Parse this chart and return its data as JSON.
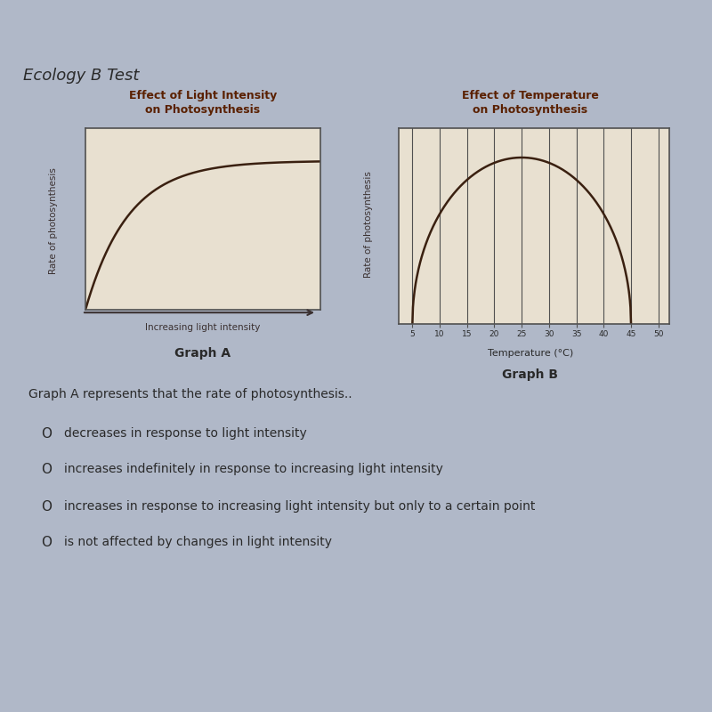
{
  "page_bg": "#b0b8c8",
  "paper_bg": "#d8d0c0",
  "header_bg": "#7a5030",
  "header_text": "Ecology B Test",
  "header_text_color": "#c8a878",
  "graph_a_title": "Effect of Light Intensity\non Photosynthesis",
  "graph_a_ylabel": "Rate of photosynthesis",
  "graph_a_xlabel": "Increasing light intensity",
  "graph_a_label": "Graph A",
  "graph_b_title": "Effect of Temperature\non Photosynthesis",
  "graph_b_ylabel": "Rate of photosynthesis",
  "graph_b_xlabel": "Temperature (°C)",
  "graph_b_label": "Graph B",
  "graph_b_xticks": [
    5,
    10,
    15,
    20,
    25,
    30,
    35,
    40,
    45,
    50
  ],
  "question_text": "Graph A represents that the rate of photosynthesis..",
  "options": [
    "decreases in response to light intensity",
    "increases indefinitely in response to increasing light intensity",
    "increases in response to increasing light intensity but only to a certain point",
    "is not affected by changes in light intensity"
  ],
  "title_color": "#5a2000",
  "axis_color": "#3a3030",
  "curve_color": "#3a2010",
  "text_color": "#2a2a2a",
  "graph_box_color": "#e8e0d0",
  "graph_line_color": "#505050"
}
